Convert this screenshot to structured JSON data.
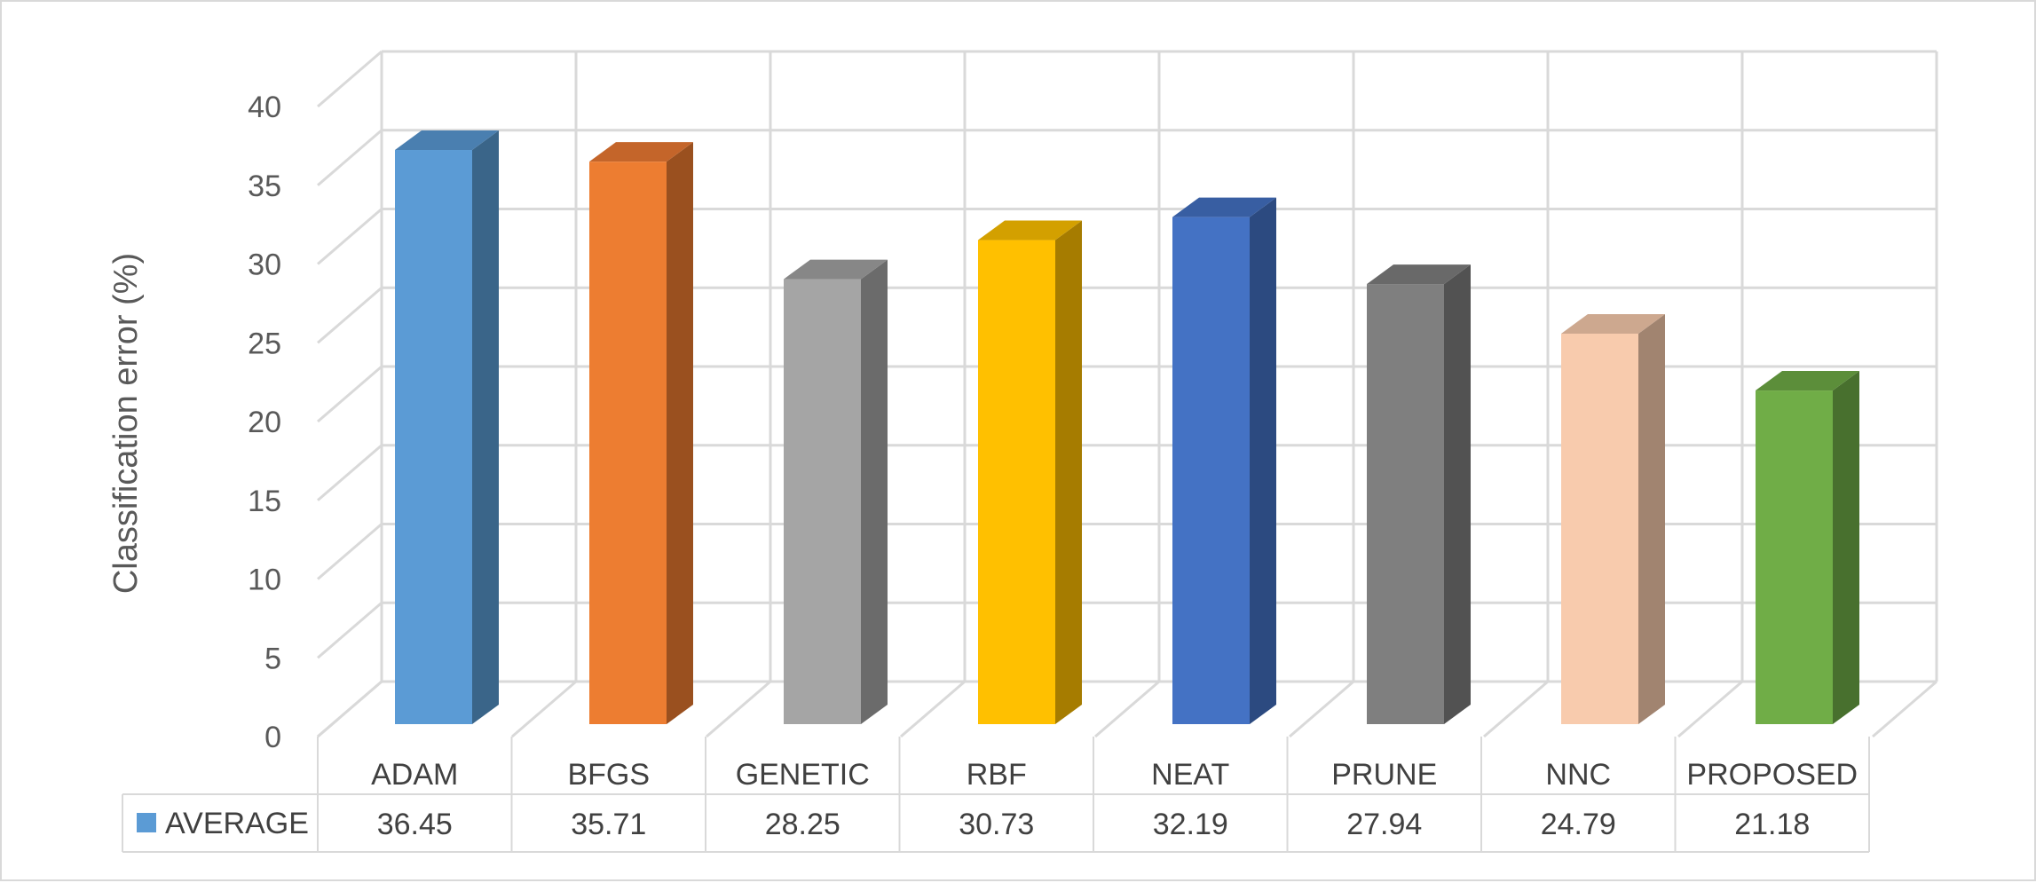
{
  "chart_data": {
    "type": "bar",
    "style": "3d-column",
    "categories": [
      "ADAM",
      "BFGS",
      "GENETIC",
      "RBF",
      "NEAT",
      "PRUNE",
      "NNC",
      "PROPOSED"
    ],
    "series": [
      {
        "name": "AVERAGE",
        "values": [
          36.45,
          35.71,
          28.25,
          30.73,
          32.19,
          27.94,
          24.79,
          21.18
        ]
      }
    ],
    "bar_colors": [
      {
        "front": "#5b9bd5",
        "side": "#3a6589",
        "top": "#4a7fb0"
      },
      {
        "front": "#ed7d31",
        "side": "#9a501f",
        "top": "#c4652a"
      },
      {
        "front": "#a5a5a5",
        "side": "#6b6b6b",
        "top": "#878787"
      },
      {
        "front": "#ffc000",
        "side": "#a67c00",
        "top": "#d3a000"
      },
      {
        "front": "#4472c4",
        "side": "#2c4a80",
        "top": "#385ea2"
      },
      {
        "front": "#7f7f7f",
        "side": "#525252",
        "top": "#696969"
      },
      {
        "front": "#f8cbad",
        "side": "#a18470",
        "top": "#cda88f"
      },
      {
        "front": "#70ad47",
        "side": "#48702e",
        "top": "#5c8e3a"
      }
    ],
    "legend_swatch_color": "#5b9bd5",
    "title": "",
    "xlabel": "",
    "ylabel": "Classification error (%)",
    "ylim": [
      0,
      40
    ],
    "yticks": [
      0,
      5,
      10,
      15,
      20,
      25,
      30,
      35,
      40
    ],
    "grid": true,
    "data_table": true
  }
}
